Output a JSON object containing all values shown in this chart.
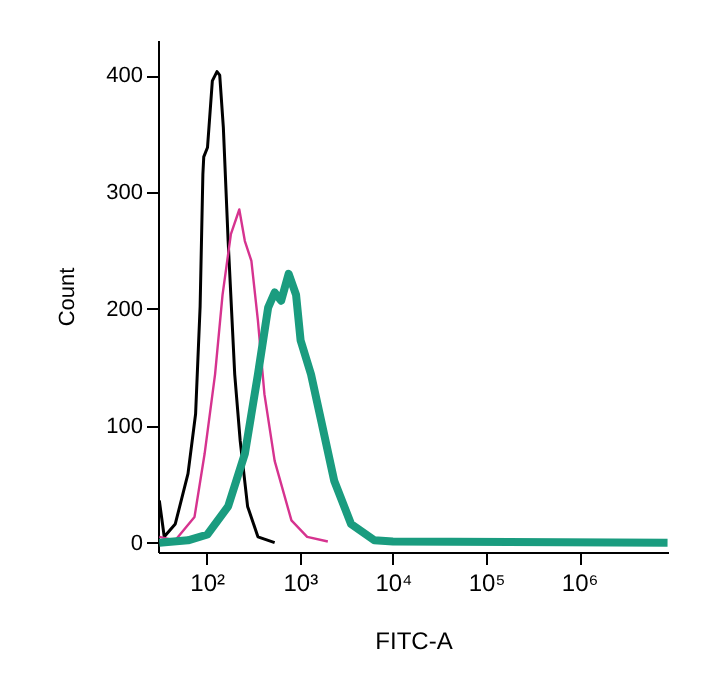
{
  "chart_data": {
    "type": "line",
    "xlabel": "FITC-A",
    "ylabel": "Count",
    "log": "x",
    "xlim": [
      30,
      9000000
    ],
    "ylim": [
      -8,
      430
    ],
    "xticks": [
      {
        "value": 100,
        "label": "10²"
      },
      {
        "value": 1000,
        "label": "10³"
      },
      {
        "value": 10000,
        "label": "10⁴"
      },
      {
        "value": 100000,
        "label": "10⁵"
      },
      {
        "value": 1000000,
        "label": "10⁶"
      }
    ],
    "yticks": [
      0,
      100,
      200,
      300,
      400
    ],
    "grid": false,
    "legend": false,
    "marker": "none",
    "line_style": "solid",
    "series": [
      {
        "color": "#000000",
        "x": [
          31,
          35,
          46,
          63,
          76,
          85,
          91,
          93,
          102,
          115,
          129,
          138,
          151,
          170,
          200,
          229,
          275,
          355,
          537
        ],
        "values": [
          36,
          5,
          16,
          59,
          110,
          202,
          315,
          330,
          338,
          395,
          403,
          400,
          355,
          258,
          144,
          87,
          31,
          5,
          0
        ]
      },
      {
        "color": "#d6338f",
        "x": [
          31,
          46,
          74,
          95,
          123,
          148,
          182,
          224,
          257,
          302,
          355,
          417,
          537,
          813,
          1200,
          2000
        ],
        "values": [
          5,
          2,
          22,
          76,
          144,
          212,
          264,
          285,
          258,
          241,
          190,
          127,
          70,
          19,
          5,
          1
        ]
      },
      {
        "color": "#1a9c7f",
        "x": [
          31,
          63,
          102,
          170,
          257,
          355,
          457,
          537,
          631,
          759,
          912,
          1020,
          1320,
          1700,
          2340,
          3550,
          6310,
          10000,
          8900000
        ],
        "values": [
          0,
          2,
          7,
          31,
          76,
          144,
          201,
          214,
          207,
          230,
          212,
          173,
          144,
          104,
          53,
          16,
          2,
          1,
          0
        ]
      }
    ]
  }
}
